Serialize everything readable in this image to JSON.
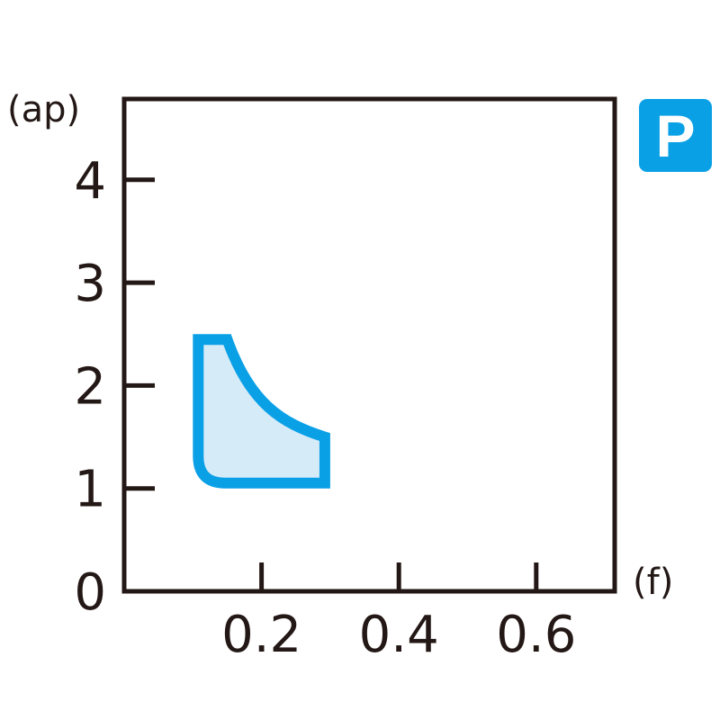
{
  "badge": {
    "label": "P",
    "color": "#0aa0e6"
  },
  "chart_data": {
    "type": "area",
    "xlabel": "(f)",
    "ylabel": "(ap)",
    "xlim": [
      0,
      0.714
    ],
    "ylim": [
      0,
      4.79
    ],
    "x_ticks": [
      0.2,
      0.4,
      0.6
    ],
    "x_tick_labels": [
      "0.2",
      "0.4",
      "0.6"
    ],
    "y_ticks": [
      0,
      1,
      2,
      3,
      4
    ],
    "y_tick_labels": [
      "0",
      "1",
      "2",
      "3",
      "4"
    ],
    "grid": false,
    "region": {
      "description_points": [
        [
          0.1,
          1.0
        ],
        [
          0.1,
          2.5
        ],
        [
          0.15,
          2.5
        ],
        [
          0.3,
          1.5
        ],
        [
          0.3,
          1.0
        ]
      ],
      "curved_edge": [
        [
          0.15,
          2.5
        ],
        [
          0.3,
          1.5
        ]
      ],
      "fill_color": "#d6ebf8",
      "stroke_color": "#0aa0e6"
    }
  }
}
